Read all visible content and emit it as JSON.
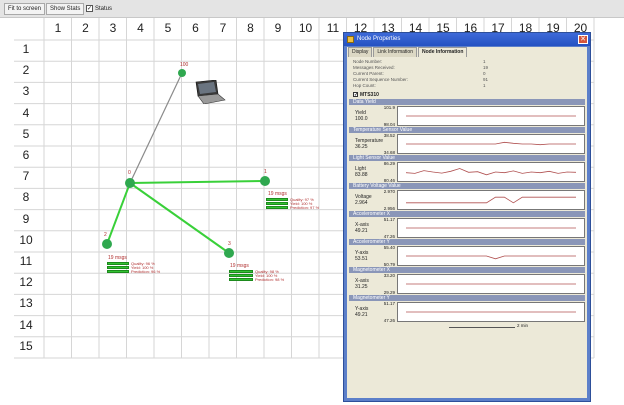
{
  "toolbar": {
    "fit_button": "Fit to screen",
    "show_stats_button": "Show Stats",
    "status_checkbox_label": "Status",
    "status_checked": true
  },
  "grid": {
    "columns": [
      "1",
      "2",
      "3",
      "4",
      "5",
      "6",
      "7",
      "8",
      "9",
      "10",
      "11",
      "12",
      "13",
      "14",
      "15",
      "16",
      "17",
      "18",
      "19",
      "20"
    ],
    "rows": [
      "1",
      "2",
      "3",
      "4",
      "5",
      "6",
      "7",
      "8",
      "9",
      "10",
      "11",
      "12",
      "13",
      "14",
      "15"
    ]
  },
  "network": {
    "base_station": {
      "label": "100"
    },
    "router": {
      "label": "0"
    },
    "motes": [
      {
        "label": "1",
        "msgs": "19 msgs",
        "quality": "Quality: 97 %",
        "yield": "Yield: 100 %",
        "predict": "Prediction: 97 %"
      },
      {
        "label": "2",
        "msgs": "19 msgs",
        "quality": "Quality: 96 %",
        "yield": "Yield: 100 %",
        "predict": "Prediction: 96 %"
      },
      {
        "label": "3",
        "msgs": "19 msgs",
        "quality": "Quality: 98 %",
        "yield": "Yield: 100 %",
        "predict": "Prediction: 98 %"
      }
    ]
  },
  "properties": {
    "title": "Node Properties",
    "tabs": [
      "Display",
      "Link Information",
      "Node Information"
    ],
    "active_tab": "Node Information",
    "info": [
      {
        "k": "Node Number:",
        "v": "1"
      },
      {
        "k": "Messages Received:",
        "v": "19"
      },
      {
        "k": "Current Parent:",
        "v": "0"
      },
      {
        "k": "Current Sequence Number:",
        "v": "91"
      },
      {
        "k": "Hop Count:",
        "v": "1"
      }
    ],
    "sensor_board": "MTS310",
    "sensor_checked": true,
    "plots": [
      {
        "section": "Data Yield",
        "label": "Yield",
        "value": "100.0",
        "max": "101.9",
        "min": "98.04",
        "series": [
          0.5,
          0.5,
          0.5,
          0.5,
          0.5,
          0.5,
          0.5,
          0.5,
          0.5,
          0.5,
          0.5,
          0.5,
          0.5,
          0.5,
          0.5,
          0.5,
          0.5,
          0.5,
          0.5,
          0.5
        ]
      },
      {
        "section": "Temperature Sensor Value",
        "label": "Temperature",
        "value": "36.25",
        "max": "38.52",
        "min": "34.68",
        "series": [
          0.5,
          0.5,
          0.5,
          0.5,
          0.5,
          0.5,
          0.5,
          0.5,
          0.5,
          0.5,
          0.5,
          0.62,
          0.55,
          0.5,
          0.5,
          0.45,
          0.5,
          0.5,
          0.5,
          0.5
        ]
      },
      {
        "section": "Light Sensor Value",
        "label": "Light",
        "value": "83.88",
        "max": "86.29",
        "min": "80.46",
        "series": [
          0.45,
          0.4,
          0.6,
          0.5,
          0.42,
          0.55,
          0.75,
          0.48,
          0.52,
          0.3,
          0.5,
          0.45,
          0.58,
          0.4,
          0.5,
          0.45,
          0.55,
          0.4,
          0.5,
          0.48
        ]
      },
      {
        "section": "Battery Voltage Value",
        "label": "Voltage",
        "value": "2.964",
        "max": "2.970",
        "min": "2.956",
        "series": [
          0.3,
          0.3,
          0.3,
          0.3,
          0.3,
          0.3,
          0.3,
          0.3,
          0.3,
          0.3,
          0.7,
          0.7,
          0.3,
          0.7,
          0.7,
          0.7,
          0.7,
          0.7,
          0.7,
          0.7
        ]
      },
      {
        "section": "Accelerometer X",
        "label": "X-axis",
        "value": "49.21",
        "max": "51.17",
        "min": "47.26",
        "series": [
          0.5,
          0.5,
          0.5,
          0.5,
          0.5,
          0.5,
          0.5,
          0.5,
          0.5,
          0.5,
          0.5,
          0.5,
          0.5,
          0.5,
          0.5,
          0.5,
          0.5,
          0.5,
          0.5,
          0.5
        ]
      },
      {
        "section": "Accelerometer Y",
        "label": "Y-axis",
        "value": "53.51",
        "max": "55.40",
        "min": "50.79",
        "series": [
          0.5,
          0.5,
          0.5,
          0.5,
          0.5,
          0.5,
          0.5,
          0.5,
          0.5,
          0.5,
          0.3,
          0.5,
          0.5,
          0.5,
          0.5,
          0.5,
          0.5,
          0.5,
          0.5,
          0.5
        ]
      },
      {
        "section": "Magnetometer X",
        "label": "X-axis",
        "value": "31.25",
        "max": "33.20",
        "min": "29.29",
        "series": [
          0.5,
          0.5,
          0.5,
          0.5,
          0.5,
          0.5,
          0.5,
          0.5,
          0.5,
          0.5,
          0.5,
          0.5,
          0.5,
          0.5,
          0.5,
          0.5,
          0.5,
          0.5,
          0.5,
          0.5
        ]
      },
      {
        "section": "Magnetometer Y",
        "label": "Y-axis",
        "value": "49.21",
        "max": "51.17",
        "min": "47.26",
        "series": [
          0.5,
          0.5,
          0.5,
          0.5,
          0.5,
          0.5,
          0.5,
          0.5,
          0.5,
          0.5,
          0.5,
          0.5,
          0.5,
          0.5,
          0.5,
          0.5,
          0.5,
          0.5,
          0.5,
          0.5
        ]
      }
    ],
    "time_scale": "2 min"
  },
  "colors": {
    "node": "#2fa84f",
    "link": "#39d039",
    "base_link": "#8a8a8a",
    "label": "#b03030",
    "plot_line": "#b05050"
  }
}
